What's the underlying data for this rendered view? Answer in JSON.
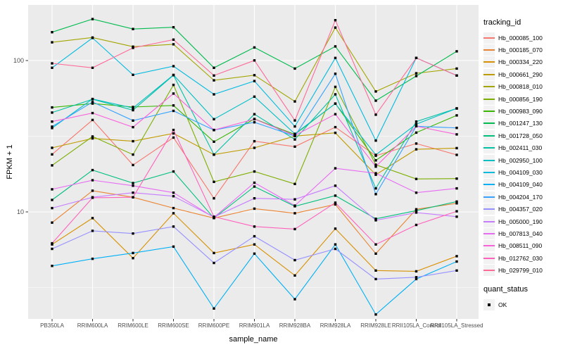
{
  "style": {
    "panel_bg": "#EBEBEB",
    "grid_color": "#FFFFFF",
    "tick_color": "#333333",
    "tick_label_color": "#4D4D4D",
    "point_color": "#000000",
    "legend_key_bg": "#F2F2F2"
  },
  "chart_data": {
    "type": "line",
    "title": "",
    "xlabel": "sample_name",
    "ylabel": "FPKM + 1",
    "y_scale": "log10",
    "y_ticks": [
      10,
      100
    ],
    "y_minor_ticks": [
      3.162,
      31.62
    ],
    "ylim": [
      1.95,
      235
    ],
    "grid": "on",
    "legend_position": "right",
    "legend_title": "tracking_id",
    "legend2": {
      "title": "quant_status",
      "items": [
        "OK"
      ]
    },
    "marker": "black-square",
    "x_categories": [
      "PB350LA",
      "RRIM600LA",
      "RRIM600LE",
      "RRIM600SE",
      "RRIM600PE",
      "RRIM901LA",
      "RRIM928BA",
      "RRIM928LA",
      "RRIM928LE",
      "RRII105LA_Control",
      "RRII105LA_Stressed"
    ],
    "series": [
      {
        "name": "Hb_000085_100",
        "color": "#F8766D",
        "values": [
          24,
          40.5,
          20.4,
          31,
          12.3,
          29.3,
          27,
          36.3,
          23.5,
          28.3,
          23.8
        ]
      },
      {
        "name": "Hb_000185_070",
        "color": "#EA8331",
        "values": [
          8.5,
          13.8,
          12.5,
          10.6,
          9.1,
          10.5,
          9.8,
          11.2,
          5.3,
          10.4,
          11.4
        ]
      },
      {
        "name": "Hb_000334_220",
        "color": "#D89000",
        "values": [
          6.1,
          9.1,
          4.95,
          9.8,
          5.35,
          6.1,
          3.8,
          7.75,
          4.1,
          4.05,
          5.1
        ]
      },
      {
        "name": "Hb_000661_290",
        "color": "#C09B00",
        "values": [
          26.5,
          30.6,
          29.3,
          33,
          23.9,
          26.5,
          31.7,
          33.3,
          17.6,
          25.9,
          26.4
        ]
      },
      {
        "name": "Hb_000818_010",
        "color": "#A3A500",
        "values": [
          132,
          142,
          123.5,
          128,
          74,
          80,
          53.7,
          165,
          62.5,
          82.4,
          88.5
        ]
      },
      {
        "name": "Hb_000856_190",
        "color": "#7CAE00",
        "values": [
          20.3,
          31.5,
          23.9,
          69,
          15.8,
          18.5,
          15.3,
          67,
          20.5,
          16.5,
          16.6
        ]
      },
      {
        "name": "Hb_000983_090",
        "color": "#39B600",
        "values": [
          49,
          52,
          49.3,
          50.5,
          29.1,
          41.1,
          32.5,
          52,
          21.9,
          33.4,
          43.4
        ]
      },
      {
        "name": "Hb_001247_130",
        "color": "#00BB4E",
        "values": [
          154,
          188,
          161.5,
          166,
          89.6,
          122,
          88.5,
          124,
          54.3,
          79,
          115
        ]
      },
      {
        "name": "Hb_001728_050",
        "color": "#00BF7D",
        "values": [
          12,
          18.9,
          15.5,
          18.5,
          9.1,
          14.7,
          10.9,
          12.8,
          9,
          10.2,
          11.7
        ]
      },
      {
        "name": "Hb_002411_030",
        "color": "#00C1A3",
        "values": [
          45.3,
          55.5,
          47,
          80,
          23.9,
          44.2,
          30.1,
          59.8,
          14.3,
          39.5,
          48.3
        ]
      },
      {
        "name": "Hb_002950_100",
        "color": "#00BFC4",
        "values": [
          35.8,
          55.7,
          48.6,
          80.4,
          41,
          57.7,
          32.8,
          51.9,
          23.8,
          38,
          48.3
        ]
      },
      {
        "name": "Hb_004109_030",
        "color": "#00BAE0",
        "values": [
          89.6,
          141,
          80.5,
          91.8,
          59.8,
          73.2,
          36.7,
          104,
          29.6,
          104,
          79.6
        ]
      },
      {
        "name": "Hb_004109_040",
        "color": "#00B0F6",
        "values": [
          4.4,
          4.9,
          5.35,
          5.9,
          2.3,
          5.3,
          2.65,
          6.1,
          2.1,
          3.6,
          4.7
        ]
      },
      {
        "name": "Hb_004204_170",
        "color": "#35A2FF",
        "values": [
          36.6,
          53.2,
          40.1,
          46.5,
          34.7,
          39.1,
          31.7,
          81.8,
          13.1,
          36.8,
          35.9
        ]
      },
      {
        "name": "Hb_004357_020",
        "color": "#9590FF",
        "values": [
          5.7,
          7.5,
          7.2,
          8,
          4.6,
          6.9,
          4.8,
          5.7,
          3.6,
          3.7,
          4.1
        ]
      },
      {
        "name": "Hb_005000_190",
        "color": "#C77CFF",
        "values": [
          10.6,
          12.5,
          13.4,
          12.7,
          9.25,
          12.3,
          12.1,
          14.9,
          8.8,
          9.9,
          9.3
        ]
      },
      {
        "name": "Hb_007813_040",
        "color": "#E76BF3",
        "values": [
          14.1,
          16.2,
          14.9,
          13.4,
          9.2,
          15.6,
          11,
          19.4,
          18,
          13.4,
          14.3
        ]
      },
      {
        "name": "Hb_008511_090",
        "color": "#FA62DB",
        "values": [
          39.5,
          45,
          36.3,
          60.5,
          34.8,
          41,
          32,
          44.2,
          19.9,
          36.8,
          32.5
        ]
      },
      {
        "name": "Hb_012762_030",
        "color": "#FF62BC",
        "values": [
          6.2,
          12.4,
          12.5,
          34.8,
          9.3,
          8,
          7.7,
          11.5,
          6.1,
          8.2,
          10.1
        ]
      },
      {
        "name": "Hb_029799_010",
        "color": "#FF6A98",
        "values": [
          95.8,
          89.6,
          121.3,
          137.4,
          79.6,
          100.2,
          40.2,
          184.8,
          43.9,
          104,
          79.6
        ]
      }
    ]
  }
}
